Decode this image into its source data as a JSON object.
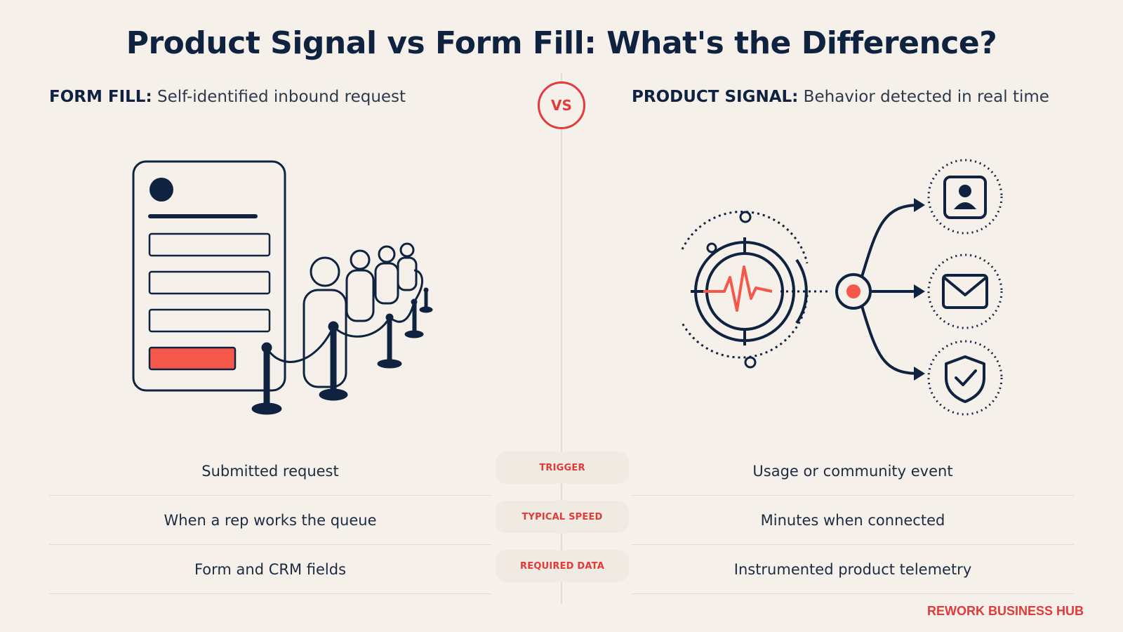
{
  "title": "Product Signal vs Form Fill: What's the Difference?",
  "vs_label": "VS",
  "left": {
    "heading_bold": "FORM FILL:",
    "heading_rest": " Self-identified inbound request"
  },
  "right": {
    "heading_bold": "PRODUCT SIGNAL:",
    "heading_rest": " Behavior detected in real time"
  },
  "rows": [
    {
      "label": "TRIGGER",
      "left": "Submitted request",
      "right": "Usage or community event"
    },
    {
      "label": "TYPICAL SPEED",
      "left": "When a rep works the queue",
      "right": "Minutes when connected"
    },
    {
      "label": "REQUIRED DATA",
      "left": "Form and CRM fields",
      "right": "Instrumented product telemetry"
    }
  ],
  "brand": "REWORK BUSINESS HUB",
  "colors": {
    "navy": "#0f2341",
    "accent": "#e23b3b",
    "coral": "#f5574a",
    "background": "#f5f1ea"
  },
  "icons": [
    "form-icon",
    "queue-people-icon",
    "stanchion-icon",
    "heartbeat-monitor-icon",
    "user-icon",
    "mail-icon",
    "shield-check-icon"
  ]
}
